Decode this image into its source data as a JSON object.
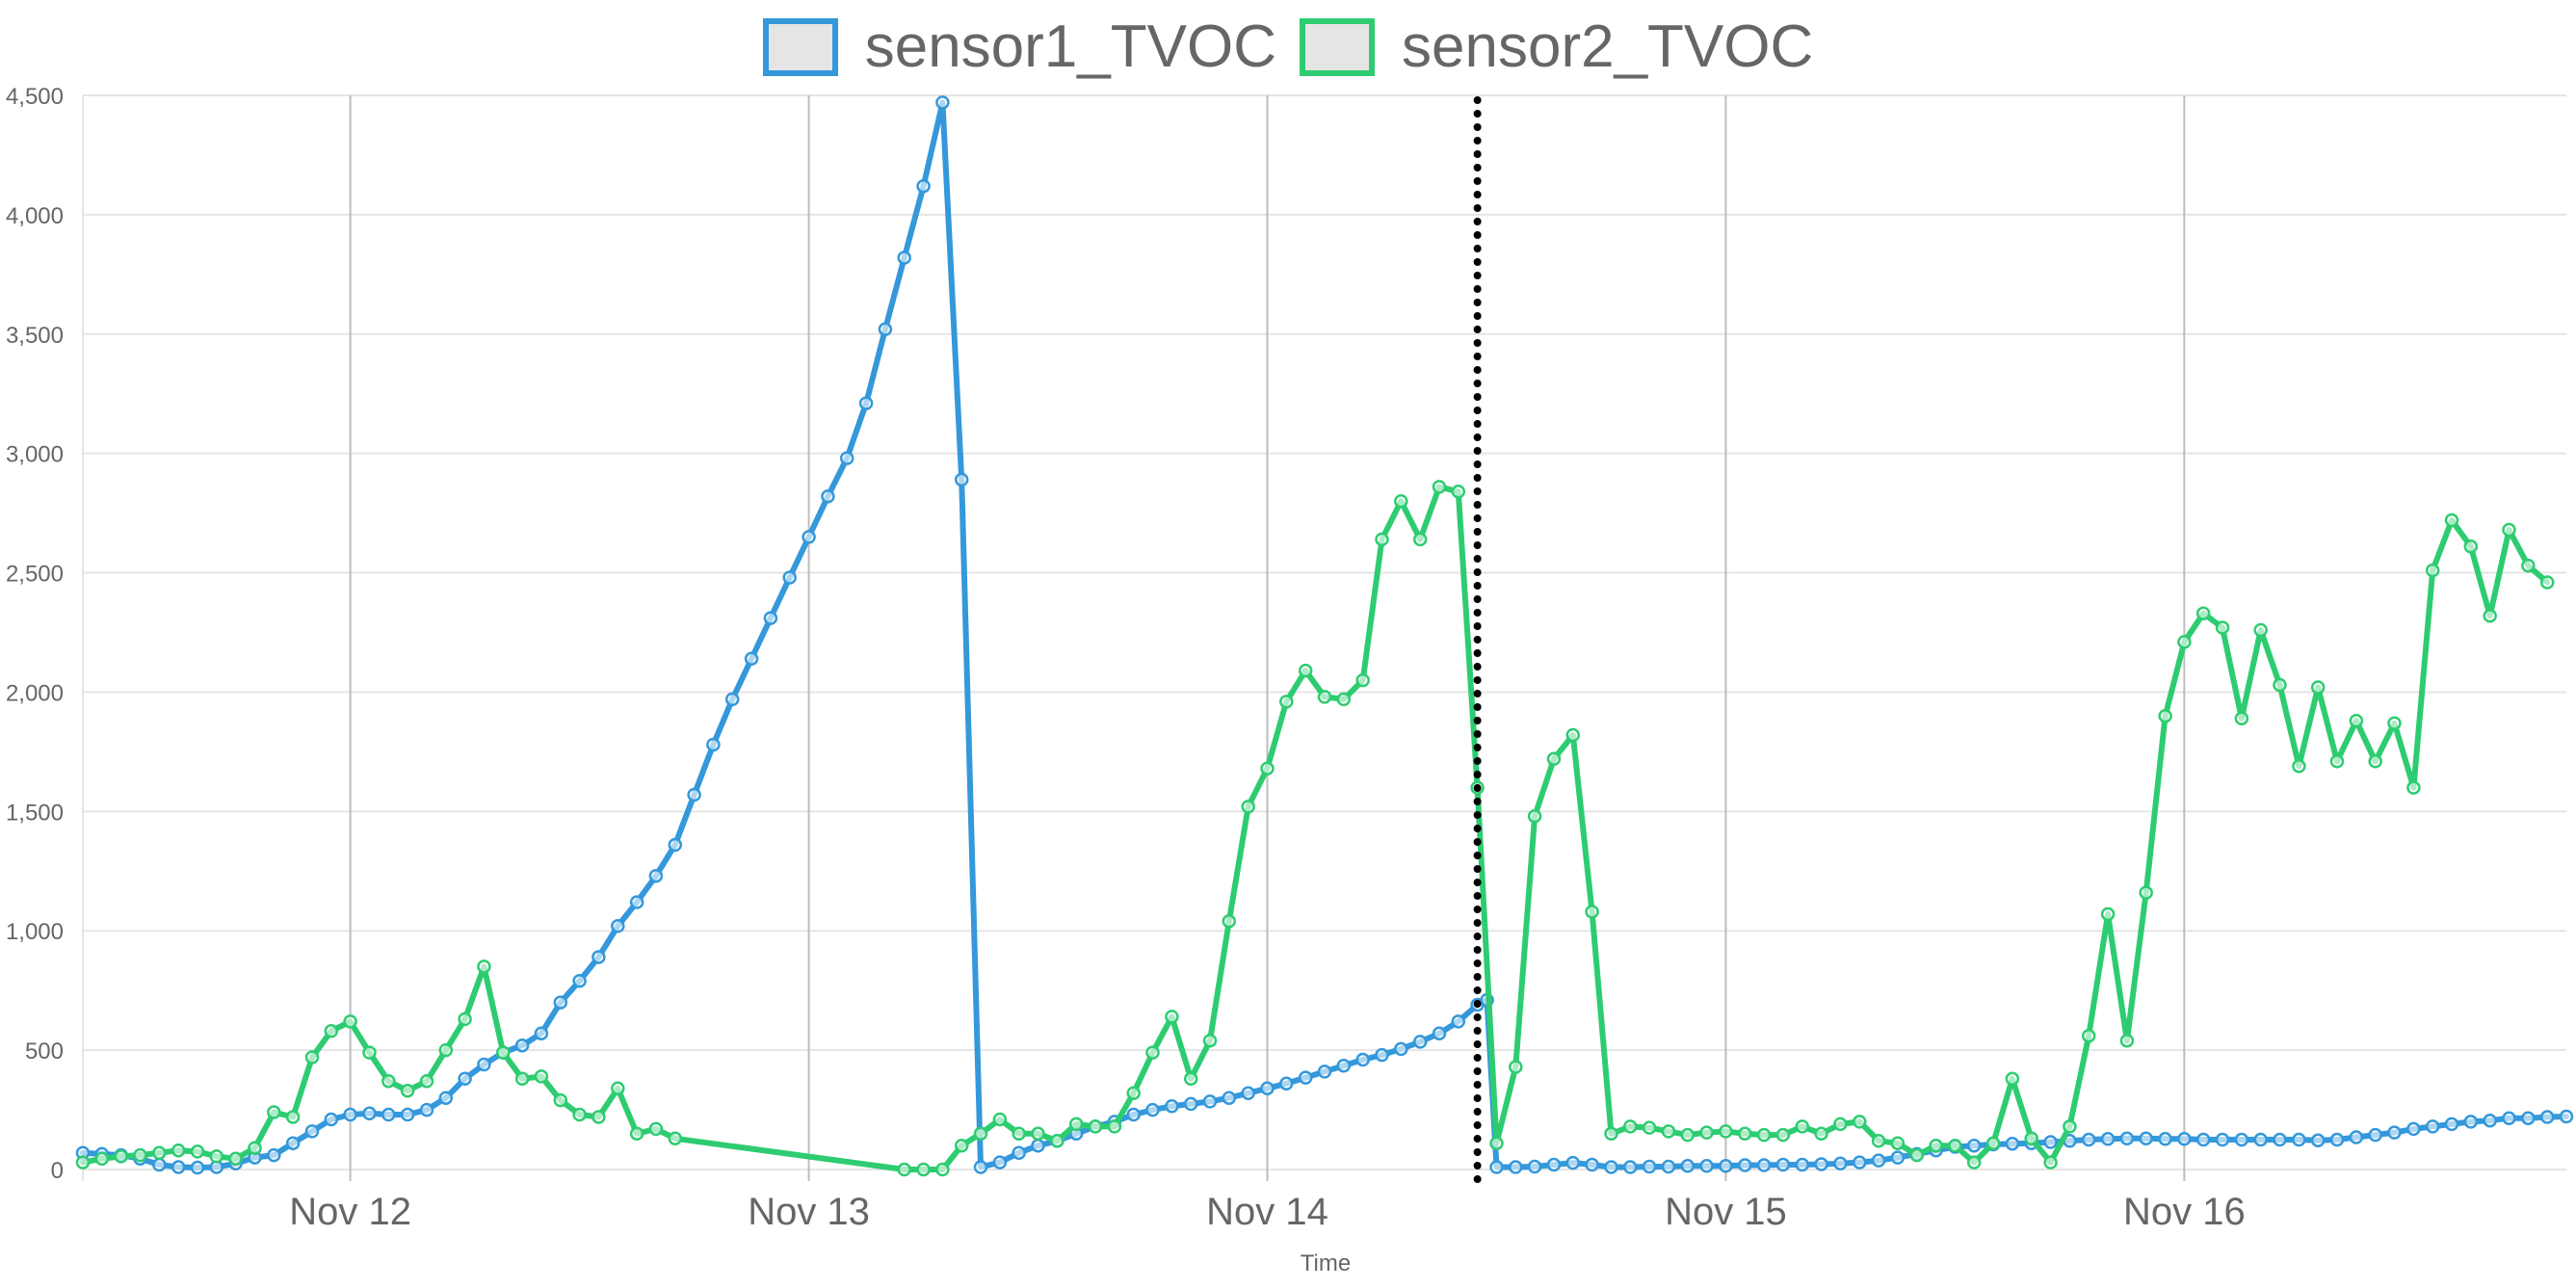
{
  "colors": {
    "sensor1": "#3498db",
    "sensor2": "#2ecc71",
    "grid": "#e5e5e5",
    "vgrid": "#bdbdbd",
    "marker": "#000000"
  },
  "chart_data": {
    "type": "line",
    "title": "",
    "xlabel": "Time",
    "ylabel": "",
    "ylim": [
      0,
      4500
    ],
    "yticks": [
      0,
      500,
      1000,
      1500,
      2000,
      2500,
      3000,
      3500,
      4000,
      4500
    ],
    "ytick_labels": [
      "0",
      "500",
      "1,000",
      "1,500",
      "2,000",
      "2,500",
      "3,000",
      "3,500",
      "4,000",
      "4,500"
    ],
    "xlim": [
      "2023-11-11T10:00",
      "2023-11-16T20:00"
    ],
    "xticks": [
      {
        "label": "Nov 12",
        "time": "2023-11-12T00:00"
      },
      {
        "label": "Nov 13",
        "time": "2023-11-13T00:00"
      },
      {
        "label": "Nov 14",
        "time": "2023-11-14T00:00"
      },
      {
        "label": "Nov 15",
        "time": "2023-11-15T00:00"
      },
      {
        "label": "Nov 16",
        "time": "2023-11-16T00:00"
      }
    ],
    "legend": "top-center",
    "grid": true,
    "annotations": [
      {
        "type": "vertical-dotted-line",
        "time": "2023-11-14T11:00"
      }
    ],
    "series": [
      {
        "name": "sensor1_TVOC",
        "color": "#3498db",
        "points": [
          [
            "2023-11-11T10:00",
            70
          ],
          [
            "2023-11-11T11:00",
            65
          ],
          [
            "2023-11-11T12:00",
            60
          ],
          [
            "2023-11-11T13:00",
            45
          ],
          [
            "2023-11-11T14:00",
            20
          ],
          [
            "2023-11-11T15:00",
            10
          ],
          [
            "2023-11-11T16:00",
            8
          ],
          [
            "2023-11-11T17:00",
            10
          ],
          [
            "2023-11-11T18:00",
            25
          ],
          [
            "2023-11-11T19:00",
            50
          ],
          [
            "2023-11-11T20:00",
            60
          ],
          [
            "2023-11-11T21:00",
            110
          ],
          [
            "2023-11-11T22:00",
            160
          ],
          [
            "2023-11-11T23:00",
            210
          ],
          [
            "2023-11-12T00:00",
            230
          ],
          [
            "2023-11-12T01:00",
            235
          ],
          [
            "2023-11-12T02:00",
            230
          ],
          [
            "2023-11-12T03:00",
            230
          ],
          [
            "2023-11-12T04:00",
            250
          ],
          [
            "2023-11-12T05:00",
            300
          ],
          [
            "2023-11-12T06:00",
            380
          ],
          [
            "2023-11-12T07:00",
            440
          ],
          [
            "2023-11-12T08:00",
            490
          ],
          [
            "2023-11-12T09:00",
            520
          ],
          [
            "2023-11-12T10:00",
            570
          ],
          [
            "2023-11-12T11:00",
            700
          ],
          [
            "2023-11-12T12:00",
            790
          ],
          [
            "2023-11-12T13:00",
            890
          ],
          [
            "2023-11-12T14:00",
            1020
          ],
          [
            "2023-11-12T15:00",
            1120
          ],
          [
            "2023-11-12T16:00",
            1230
          ],
          [
            "2023-11-12T17:00",
            1360
          ],
          [
            "2023-11-12T18:00",
            1570
          ],
          [
            "2023-11-12T19:00",
            1780
          ],
          [
            "2023-11-12T20:00",
            1970
          ],
          [
            "2023-11-12T21:00",
            2140
          ],
          [
            "2023-11-12T22:00",
            2310
          ],
          [
            "2023-11-12T23:00",
            2480
          ],
          [
            "2023-11-13T00:00",
            2650
          ],
          [
            "2023-11-13T01:00",
            2820
          ],
          [
            "2023-11-13T02:00",
            2980
          ],
          [
            "2023-11-13T03:00",
            3210
          ],
          [
            "2023-11-13T04:00",
            3520
          ],
          [
            "2023-11-13T05:00",
            3820
          ],
          [
            "2023-11-13T06:00",
            4120
          ],
          [
            "2023-11-13T07:00",
            4470
          ],
          [
            "2023-11-13T08:00",
            2890
          ],
          [
            "2023-11-13T09:00",
            10
          ],
          [
            "2023-11-13T10:00",
            30
          ],
          [
            "2023-11-13T11:00",
            70
          ],
          [
            "2023-11-13T12:00",
            100
          ],
          [
            "2023-11-13T13:00",
            120
          ],
          [
            "2023-11-13T14:00",
            150
          ],
          [
            "2023-11-13T15:00",
            180
          ],
          [
            "2023-11-13T16:00",
            200
          ],
          [
            "2023-11-13T17:00",
            230
          ],
          [
            "2023-11-13T18:00",
            250
          ],
          [
            "2023-11-13T19:00",
            265
          ],
          [
            "2023-11-13T20:00",
            275
          ],
          [
            "2023-11-13T21:00",
            285
          ],
          [
            "2023-11-13T22:00",
            300
          ],
          [
            "2023-11-13T23:00",
            320
          ],
          [
            "2023-11-14T00:00",
            340
          ],
          [
            "2023-11-14T01:00",
            360
          ],
          [
            "2023-11-14T02:00",
            385
          ],
          [
            "2023-11-14T03:00",
            410
          ],
          [
            "2023-11-14T04:00",
            435
          ],
          [
            "2023-11-14T05:00",
            460
          ],
          [
            "2023-11-14T06:00",
            480
          ],
          [
            "2023-11-14T07:00",
            505
          ],
          [
            "2023-11-14T08:00",
            535
          ],
          [
            "2023-11-14T09:00",
            570
          ],
          [
            "2023-11-14T10:00",
            620
          ],
          [
            "2023-11-14T11:00",
            690
          ],
          [
            "2023-11-14T11:30",
            710
          ],
          [
            "2023-11-14T12:00",
            10
          ],
          [
            "2023-11-14T13:00",
            10
          ],
          [
            "2023-11-14T14:00",
            12
          ],
          [
            "2023-11-14T15:00",
            20
          ],
          [
            "2023-11-14T16:00",
            28
          ],
          [
            "2023-11-14T17:00",
            20
          ],
          [
            "2023-11-14T18:00",
            10
          ],
          [
            "2023-11-14T19:00",
            10
          ],
          [
            "2023-11-14T20:00",
            12
          ],
          [
            "2023-11-14T21:00",
            12
          ],
          [
            "2023-11-14T22:00",
            15
          ],
          [
            "2023-11-14T23:00",
            15
          ],
          [
            "2023-11-15T00:00",
            15
          ],
          [
            "2023-11-15T01:00",
            18
          ],
          [
            "2023-11-15T02:00",
            18
          ],
          [
            "2023-11-15T03:00",
            20
          ],
          [
            "2023-11-15T04:00",
            20
          ],
          [
            "2023-11-15T05:00",
            22
          ],
          [
            "2023-11-15T06:00",
            25
          ],
          [
            "2023-11-15T07:00",
            30
          ],
          [
            "2023-11-15T08:00",
            38
          ],
          [
            "2023-11-15T09:00",
            50
          ],
          [
            "2023-11-15T10:00",
            65
          ],
          [
            "2023-11-15T11:00",
            80
          ],
          [
            "2023-11-15T12:00",
            95
          ],
          [
            "2023-11-15T13:00",
            100
          ],
          [
            "2023-11-15T14:00",
            105
          ],
          [
            "2023-11-15T15:00",
            108
          ],
          [
            "2023-11-15T16:00",
            110
          ],
          [
            "2023-11-15T17:00",
            115
          ],
          [
            "2023-11-15T18:00",
            120
          ],
          [
            "2023-11-15T19:00",
            125
          ],
          [
            "2023-11-15T20:00",
            128
          ],
          [
            "2023-11-15T21:00",
            130
          ],
          [
            "2023-11-15T22:00",
            130
          ],
          [
            "2023-11-15T23:00",
            128
          ],
          [
            "2023-11-16T00:00",
            128
          ],
          [
            "2023-11-16T01:00",
            125
          ],
          [
            "2023-11-16T02:00",
            125
          ],
          [
            "2023-11-16T03:00",
            125
          ],
          [
            "2023-11-16T04:00",
            125
          ],
          [
            "2023-11-16T05:00",
            125
          ],
          [
            "2023-11-16T06:00",
            125
          ],
          [
            "2023-11-16T07:00",
            122
          ],
          [
            "2023-11-16T08:00",
            125
          ],
          [
            "2023-11-16T09:00",
            135
          ],
          [
            "2023-11-16T10:00",
            145
          ],
          [
            "2023-11-16T11:00",
            155
          ],
          [
            "2023-11-16T12:00",
            170
          ],
          [
            "2023-11-16T13:00",
            180
          ],
          [
            "2023-11-16T14:00",
            190
          ],
          [
            "2023-11-16T15:00",
            200
          ],
          [
            "2023-11-16T16:00",
            205
          ],
          [
            "2023-11-16T17:00",
            215
          ],
          [
            "2023-11-16T18:00",
            215
          ],
          [
            "2023-11-16T19:00",
            220
          ],
          [
            "2023-11-16T20:00",
            222
          ]
        ]
      },
      {
        "name": "sensor2_TVOC",
        "color": "#2ecc71",
        "points": [
          [
            "2023-11-11T10:00",
            30
          ],
          [
            "2023-11-11T11:00",
            45
          ],
          [
            "2023-11-11T12:00",
            55
          ],
          [
            "2023-11-11T13:00",
            60
          ],
          [
            "2023-11-11T14:00",
            70
          ],
          [
            "2023-11-11T15:00",
            80
          ],
          [
            "2023-11-11T16:00",
            75
          ],
          [
            "2023-11-11T17:00",
            55
          ],
          [
            "2023-11-11T18:00",
            45
          ],
          [
            "2023-11-11T19:00",
            90
          ],
          [
            "2023-11-11T20:00",
            240
          ],
          [
            "2023-11-11T21:00",
            220
          ],
          [
            "2023-11-11T22:00",
            470
          ],
          [
            "2023-11-11T23:00",
            580
          ],
          [
            "2023-11-12T00:00",
            620
          ],
          [
            "2023-11-12T01:00",
            490
          ],
          [
            "2023-11-12T02:00",
            370
          ],
          [
            "2023-11-12T03:00",
            330
          ],
          [
            "2023-11-12T04:00",
            370
          ],
          [
            "2023-11-12T05:00",
            500
          ],
          [
            "2023-11-12T06:00",
            630
          ],
          [
            "2023-11-12T07:00",
            850
          ],
          [
            "2023-11-12T08:00",
            490
          ],
          [
            "2023-11-12T09:00",
            380
          ],
          [
            "2023-11-12T10:00",
            390
          ],
          [
            "2023-11-12T11:00",
            290
          ],
          [
            "2023-11-12T12:00",
            230
          ],
          [
            "2023-11-12T13:00",
            220
          ],
          [
            "2023-11-12T14:00",
            340
          ],
          [
            "2023-11-12T15:00",
            150
          ],
          [
            "2023-11-12T16:00",
            170
          ],
          [
            "2023-11-12T17:00",
            130
          ],
          [
            "2023-11-13T05:00",
            0
          ],
          [
            "2023-11-13T06:00",
            0
          ],
          [
            "2023-11-13T07:00",
            0
          ],
          [
            "2023-11-13T08:00",
            100
          ],
          [
            "2023-11-13T09:00",
            150
          ],
          [
            "2023-11-13T10:00",
            210
          ],
          [
            "2023-11-13T11:00",
            150
          ],
          [
            "2023-11-13T12:00",
            150
          ],
          [
            "2023-11-13T13:00",
            120
          ],
          [
            "2023-11-13T14:00",
            190
          ],
          [
            "2023-11-13T15:00",
            180
          ],
          [
            "2023-11-13T16:00",
            180
          ],
          [
            "2023-11-13T17:00",
            320
          ],
          [
            "2023-11-13T18:00",
            490
          ],
          [
            "2023-11-13T19:00",
            640
          ],
          [
            "2023-11-13T20:00",
            380
          ],
          [
            "2023-11-13T21:00",
            540
          ],
          [
            "2023-11-13T22:00",
            1040
          ],
          [
            "2023-11-13T23:00",
            1520
          ],
          [
            "2023-11-14T00:00",
            1680
          ],
          [
            "2023-11-14T01:00",
            1960
          ],
          [
            "2023-11-14T02:00",
            2090
          ],
          [
            "2023-11-14T03:00",
            1980
          ],
          [
            "2023-11-14T04:00",
            1970
          ],
          [
            "2023-11-14T05:00",
            2050
          ],
          [
            "2023-11-14T06:00",
            2640
          ],
          [
            "2023-11-14T07:00",
            2800
          ],
          [
            "2023-11-14T08:00",
            2640
          ],
          [
            "2023-11-14T09:00",
            2860
          ],
          [
            "2023-11-14T10:00",
            2840
          ],
          [
            "2023-11-14T11:00",
            1600
          ],
          [
            "2023-11-14T12:00",
            110
          ],
          [
            "2023-11-14T13:00",
            430
          ],
          [
            "2023-11-14T14:00",
            1480
          ],
          [
            "2023-11-14T15:00",
            1720
          ],
          [
            "2023-11-14T16:00",
            1820
          ],
          [
            "2023-11-14T17:00",
            1080
          ],
          [
            "2023-11-14T18:00",
            150
          ],
          [
            "2023-11-14T19:00",
            180
          ],
          [
            "2023-11-14T20:00",
            175
          ],
          [
            "2023-11-14T21:00",
            160
          ],
          [
            "2023-11-14T22:00",
            145
          ],
          [
            "2023-11-14T23:00",
            155
          ],
          [
            "2023-11-15T00:00",
            160
          ],
          [
            "2023-11-15T01:00",
            150
          ],
          [
            "2023-11-15T02:00",
            145
          ],
          [
            "2023-11-15T03:00",
            145
          ],
          [
            "2023-11-15T04:00",
            180
          ],
          [
            "2023-11-15T05:00",
            150
          ],
          [
            "2023-11-15T06:00",
            190
          ],
          [
            "2023-11-15T07:00",
            200
          ],
          [
            "2023-11-15T08:00",
            120
          ],
          [
            "2023-11-15T09:00",
            110
          ],
          [
            "2023-11-15T10:00",
            60
          ],
          [
            "2023-11-15T11:00",
            100
          ],
          [
            "2023-11-15T12:00",
            100
          ],
          [
            "2023-11-15T13:00",
            30
          ],
          [
            "2023-11-15T14:00",
            110
          ],
          [
            "2023-11-15T15:00",
            380
          ],
          [
            "2023-11-15T16:00",
            130
          ],
          [
            "2023-11-15T17:00",
            30
          ],
          [
            "2023-11-15T18:00",
            180
          ],
          [
            "2023-11-15T19:00",
            560
          ],
          [
            "2023-11-15T20:00",
            1070
          ],
          [
            "2023-11-15T21:00",
            540
          ],
          [
            "2023-11-15T22:00",
            1160
          ],
          [
            "2023-11-15T23:00",
            1900
          ],
          [
            "2023-11-16T00:00",
            2210
          ],
          [
            "2023-11-16T01:00",
            2330
          ],
          [
            "2023-11-16T02:00",
            2270
          ],
          [
            "2023-11-16T03:00",
            1890
          ],
          [
            "2023-11-16T04:00",
            2260
          ],
          [
            "2023-11-16T05:00",
            2030
          ],
          [
            "2023-11-16T06:00",
            1690
          ],
          [
            "2023-11-16T07:00",
            2020
          ],
          [
            "2023-11-16T08:00",
            1710
          ],
          [
            "2023-11-16T09:00",
            1880
          ],
          [
            "2023-11-16T10:00",
            1710
          ],
          [
            "2023-11-16T11:00",
            1870
          ],
          [
            "2023-11-16T12:00",
            1600
          ],
          [
            "2023-11-16T13:00",
            2510
          ],
          [
            "2023-11-16T14:00",
            2720
          ],
          [
            "2023-11-16T15:00",
            2610
          ],
          [
            "2023-11-16T16:00",
            2320
          ],
          [
            "2023-11-16T17:00",
            2680
          ],
          [
            "2023-11-16T18:00",
            2530
          ],
          [
            "2023-11-16T19:00",
            2460
          ]
        ]
      }
    ]
  }
}
